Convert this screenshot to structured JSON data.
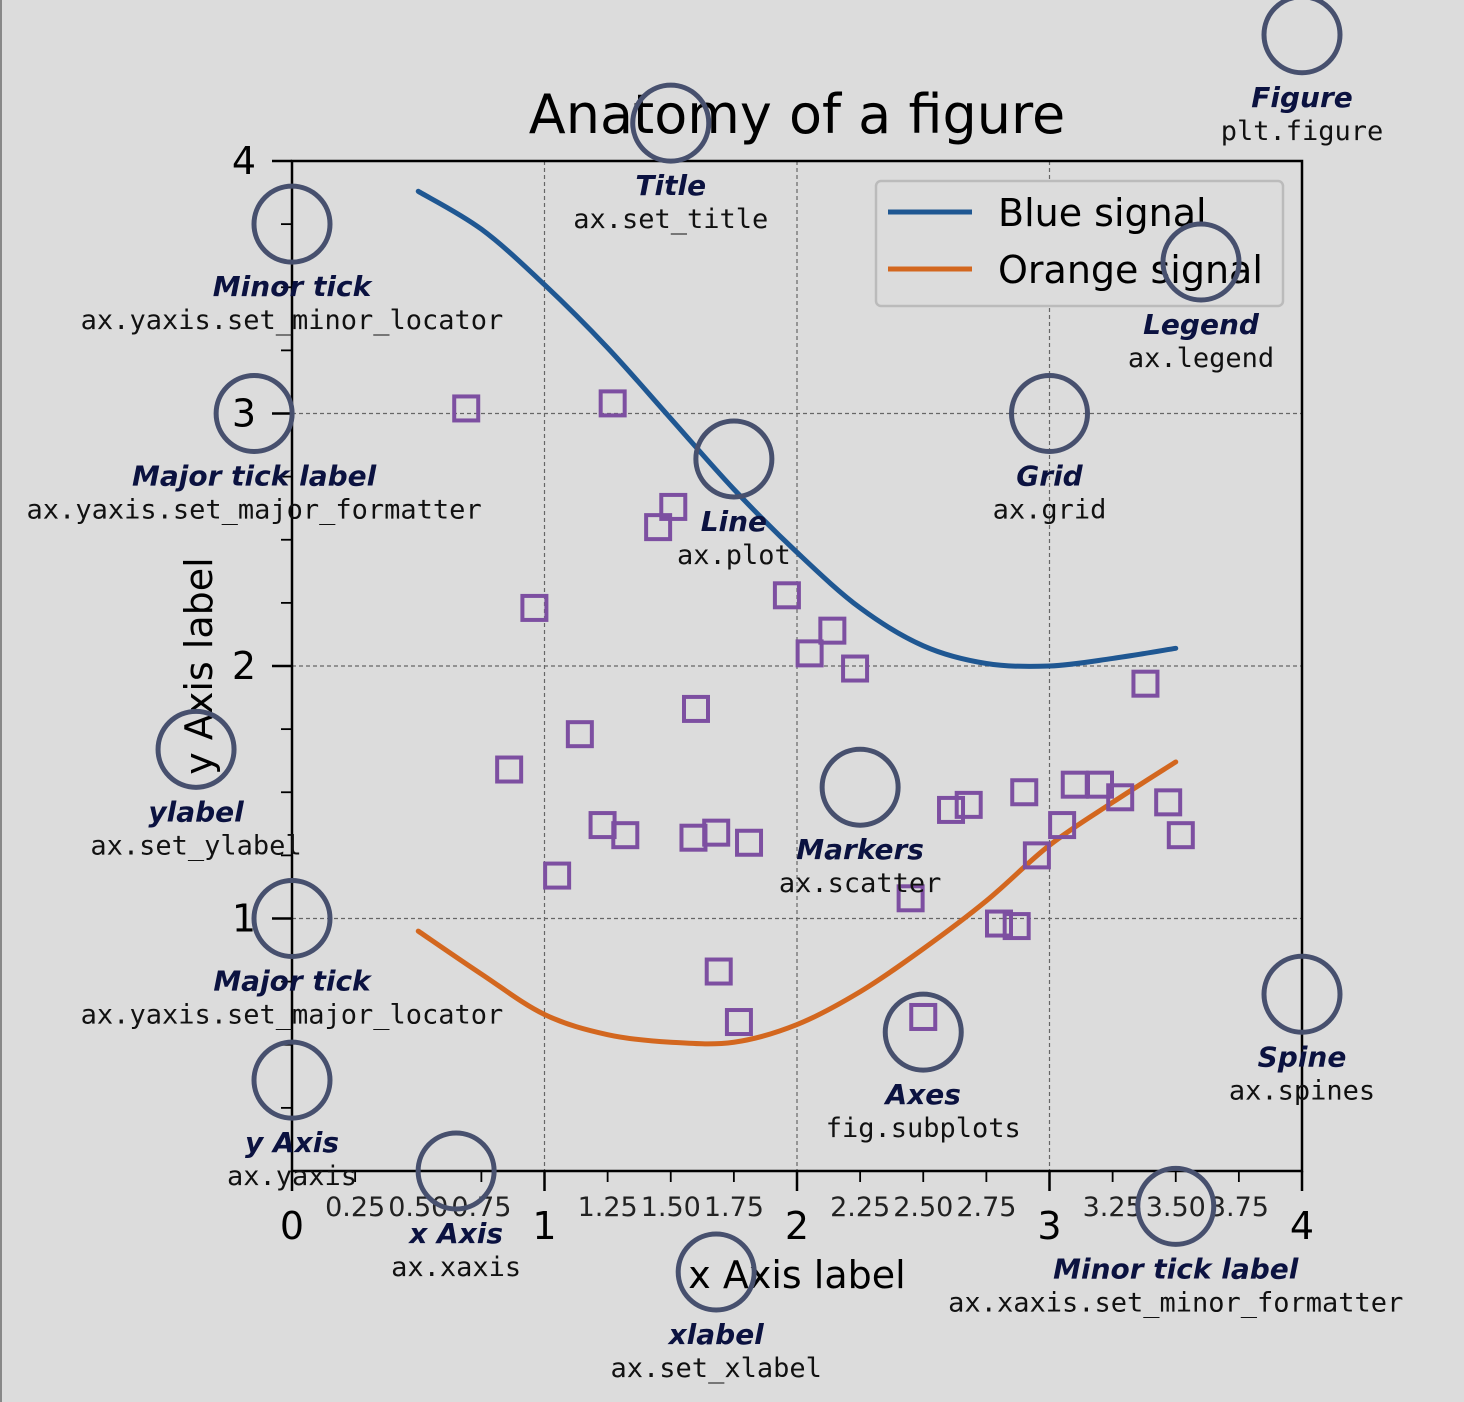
{
  "colors": {
    "background": "#dcdcdc",
    "blue": "#1f5792",
    "orange": "#d3671f",
    "marker": "#7d4fa1",
    "circle": "#47506e",
    "annotation": "#0b1240"
  },
  "chart_data": {
    "type": "line",
    "title": "Anatomy of a figure",
    "xlabel": "x Axis label",
    "ylabel": "y Axis label",
    "xlim": [
      0,
      4
    ],
    "ylim": [
      0,
      4
    ],
    "grid": true,
    "legend_position": "top-right",
    "x_major_ticks": [
      {
        "v": 0,
        "label": "0"
      },
      {
        "v": 1,
        "label": "1"
      },
      {
        "v": 2,
        "label": "2"
      },
      {
        "v": 3,
        "label": "3"
      },
      {
        "v": 4,
        "label": "4"
      }
    ],
    "x_minor_ticks": [
      {
        "v": 0.25,
        "label": "0.25"
      },
      {
        "v": 0.5,
        "label": "0.50"
      },
      {
        "v": 0.75,
        "label": "0.75"
      },
      {
        "v": 1.25,
        "label": "1.25"
      },
      {
        "v": 1.5,
        "label": "1.50"
      },
      {
        "v": 1.75,
        "label": "1.75"
      },
      {
        "v": 2.25,
        "label": "2.25"
      },
      {
        "v": 2.5,
        "label": "2.50"
      },
      {
        "v": 2.75,
        "label": "2.75"
      },
      {
        "v": 3.25,
        "label": "3.25"
      },
      {
        "v": 3.5,
        "label": "3.50"
      },
      {
        "v": 3.75,
        "label": "3.75"
      }
    ],
    "y_major_ticks": [
      {
        "v": 1,
        "label": "1"
      },
      {
        "v": 2,
        "label": "2"
      },
      {
        "v": 3,
        "label": "3"
      },
      {
        "v": 4,
        "label": "4"
      }
    ],
    "y_minor_ticks": [
      0.25,
      0.5,
      0.75,
      1.25,
      1.5,
      1.75,
      2.25,
      2.5,
      2.75,
      3.25,
      3.5,
      3.75
    ],
    "series": [
      {
        "name": "Blue signal",
        "color": "#1f5792",
        "x": [
          0.5,
          0.75,
          1.0,
          1.25,
          1.5,
          1.75,
          2.0,
          2.25,
          2.5,
          2.75,
          3.0,
          3.25,
          3.5
        ],
        "y": [
          3.88,
          3.73,
          3.51,
          3.26,
          2.98,
          2.7,
          2.45,
          2.23,
          2.08,
          2.01,
          2.0,
          2.03,
          2.07
        ]
      },
      {
        "name": "Orange signal",
        "color": "#d3671f",
        "x": [
          0.5,
          0.75,
          1.0,
          1.25,
          1.5,
          1.75,
          2.0,
          2.25,
          2.5,
          2.75,
          3.0,
          3.25,
          3.5
        ],
        "y": [
          0.95,
          0.78,
          0.62,
          0.54,
          0.51,
          0.51,
          0.58,
          0.71,
          0.88,
          1.07,
          1.29,
          1.46,
          1.62
        ]
      }
    ],
    "scatter": {
      "marker": "square",
      "x": [
        0.69,
        0.96,
        1.14,
        1.27,
        0.86,
        1.05,
        1.23,
        1.32,
        1.51,
        1.45,
        1.6,
        1.68,
        1.81,
        1.69,
        1.77,
        1.96,
        2.05,
        2.14,
        2.23,
        2.61,
        2.68,
        2.5,
        2.45,
        2.8,
        2.87,
        2.9,
        2.95,
        3.05,
        3.1,
        3.2,
        3.28,
        3.38,
        3.47,
        3.52,
        1.59
      ],
      "y": [
        3.02,
        2.23,
        1.73,
        3.04,
        1.59,
        1.17,
        1.37,
        1.33,
        2.63,
        2.55,
        1.83,
        1.34,
        1.3,
        0.79,
        0.59,
        2.28,
        2.05,
        2.14,
        1.99,
        1.43,
        1.45,
        0.61,
        1.08,
        0.98,
        0.97,
        1.5,
        1.25,
        1.37,
        1.53,
        1.53,
        1.48,
        1.93,
        1.46,
        1.33,
        1.32
      ]
    }
  },
  "annotations": [
    {
      "id": "figure",
      "x": 4.0,
      "y": 4.5,
      "label": "Figure",
      "code": "plt.figure"
    },
    {
      "id": "title",
      "x": 1.5,
      "y": 4.15,
      "label": "Title",
      "code": "ax.set_title"
    },
    {
      "id": "minor-tick",
      "x": 0.0,
      "y": 3.75,
      "label": "Minor tick",
      "code": "ax.yaxis.set_minor_locator"
    },
    {
      "id": "major-tick-label",
      "x": -0.15,
      "y": 3.0,
      "label": "Major tick label",
      "code": "ax.yaxis.set_major_formatter"
    },
    {
      "id": "legend",
      "x": 3.6,
      "y": 3.6,
      "label": "Legend",
      "code": "ax.legend"
    },
    {
      "id": "grid",
      "x": 3.0,
      "y": 3.0,
      "label": "Grid",
      "code": "ax.grid"
    },
    {
      "id": "line",
      "x": 1.75,
      "y": 2.82,
      "label": "Line",
      "code": "ax.plot"
    },
    {
      "id": "ylabel",
      "x": -0.38,
      "y": 1.67,
      "label": "ylabel",
      "code": "ax.set_ylabel"
    },
    {
      "id": "markers",
      "x": 2.25,
      "y": 1.52,
      "label": "Markers",
      "code": "ax.scatter"
    },
    {
      "id": "major-tick",
      "x": 0.0,
      "y": 1.0,
      "label": "Major tick",
      "code": "ax.yaxis.set_major_locator"
    },
    {
      "id": "axes",
      "x": 2.5,
      "y": 0.55,
      "label": "Axes",
      "code": "fig.subplots"
    },
    {
      "id": "spine",
      "x": 4.0,
      "y": 0.7,
      "label": "Spine",
      "code": "ax.spines"
    },
    {
      "id": "y-axis",
      "x": 0.0,
      "y": 0.36,
      "label": "y Axis",
      "code": "ax.yaxis"
    },
    {
      "id": "x-axis",
      "x": 0.65,
      "y": 0.0,
      "label": "x Axis",
      "code": "ax.xaxis"
    },
    {
      "id": "minor-tick-label",
      "x": 3.5,
      "y": -0.14,
      "label": "Minor tick label",
      "code": "ax.xaxis.set_minor_formatter"
    },
    {
      "id": "xlabel",
      "x": 1.68,
      "y": -0.4,
      "label": "xlabel",
      "code": "ax.set_xlabel"
    }
  ]
}
